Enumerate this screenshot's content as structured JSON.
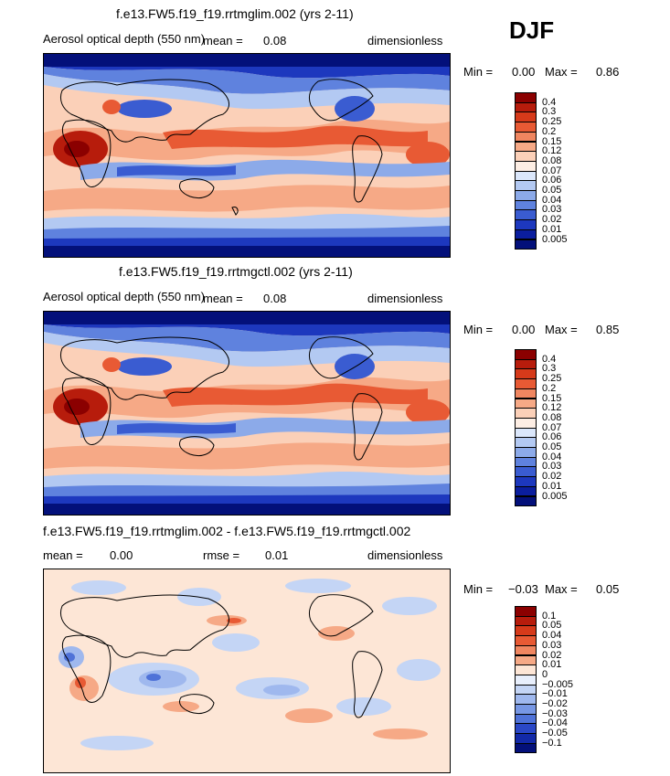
{
  "season_label": "DJF",
  "panels": [
    {
      "title": "f.e13.FW5.f19_f19.rrtmglim.002 (yrs 2-11)",
      "variable": "Aerosol optical depth (550 nm)",
      "mean_label": "mean =",
      "mean_value": "0.08",
      "units": "dimensionless",
      "range_text": {
        "min_label": "Min =",
        "min": "0.00",
        "max_label": "Max =",
        "max": "0.86"
      },
      "colorbar": {
        "levels": [
          "0.4",
          "0.3",
          "0.25",
          "0.2",
          "0.15",
          "0.12",
          "0.08",
          "0.07",
          "0.06",
          "0.05",
          "0.04",
          "0.03",
          "0.02",
          "0.01",
          "0.005"
        ],
        "colors": [
          "#8b0000",
          "#b71c0c",
          "#d63a1a",
          "#e85a34",
          "#f08660",
          "#f6a986",
          "#fbd0b8",
          "#fdeee4",
          "#dbe7fb",
          "#b3c9f2",
          "#8caae9",
          "#5f82de",
          "#3a5cd1",
          "#1d38be",
          "#0b1e9e",
          "#03107a"
        ]
      }
    },
    {
      "title": "f.e13.FW5.f19_f19.rrtmgctl.002 (yrs 2-11)",
      "variable": "Aerosol optical depth (550 nm)",
      "mean_label": "mean =",
      "mean_value": "0.08",
      "units": "dimensionless",
      "range_text": {
        "min_label": "Min =",
        "min": "0.00",
        "max_label": "Max =",
        "max": "0.85"
      },
      "colorbar": {
        "levels": [
          "0.4",
          "0.3",
          "0.25",
          "0.2",
          "0.15",
          "0.12",
          "0.08",
          "0.07",
          "0.06",
          "0.05",
          "0.04",
          "0.03",
          "0.02",
          "0.01",
          "0.005"
        ],
        "colors": [
          "#8b0000",
          "#b71c0c",
          "#d63a1a",
          "#e85a34",
          "#f08660",
          "#f6a986",
          "#fbd0b8",
          "#fdeee4",
          "#dbe7fb",
          "#b3c9f2",
          "#8caae9",
          "#5f82de",
          "#3a5cd1",
          "#1d38be",
          "#0b1e9e",
          "#03107a"
        ]
      }
    },
    {
      "title": "f.e13.FW5.f19_f19.rrtmglim.002 - f.e13.FW5.f19_f19.rrtmgctl.002",
      "mean_label": "mean =",
      "mean_value": "0.00",
      "rmse_label": "rmse =",
      "rmse_value": "0.01",
      "units": "dimensionless",
      "range_text": {
        "min_label": "Min =",
        "min": "−0.03",
        "max_label": "Max =",
        "max": "0.05"
      },
      "colorbar": {
        "levels": [
          "0.1",
          "0.05",
          "0.04",
          "0.03",
          "0.02",
          "0.01",
          "0",
          "−0.005",
          "−0.01",
          "−0.02",
          "−0.03",
          "−0.04",
          "−0.05",
          "−0.1"
        ],
        "colors": [
          "#8b0000",
          "#b71c0c",
          "#d63a1a",
          "#e85a34",
          "#f08660",
          "#f6a986",
          "#fde6d6",
          "#e8effc",
          "#c4d5f5",
          "#9fb8ee",
          "#7797e4",
          "#4f72d8",
          "#2a47c6",
          "#1229a8",
          "#03107a"
        ]
      }
    }
  ]
}
